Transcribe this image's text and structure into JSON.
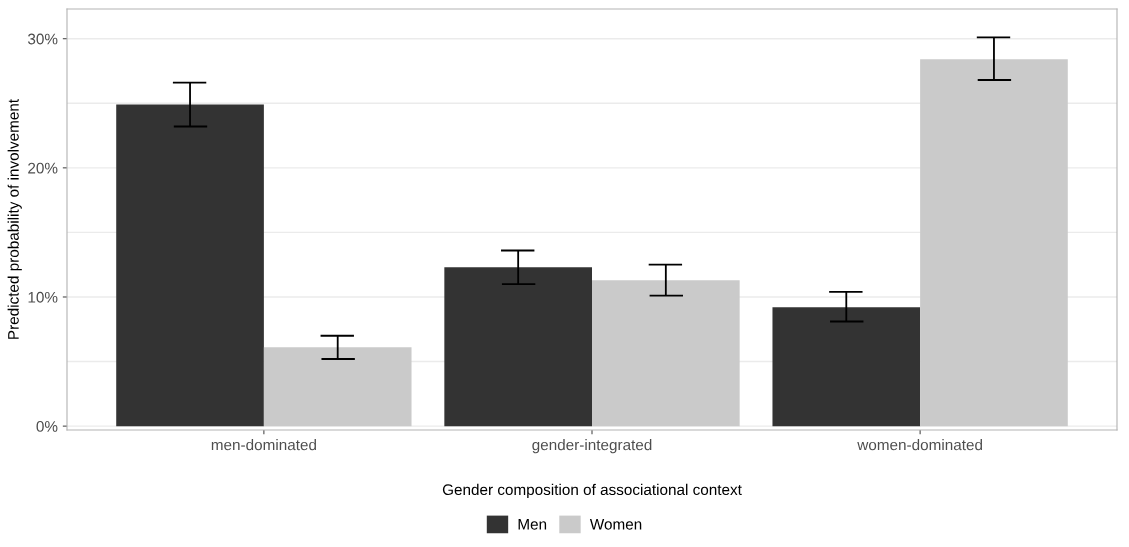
{
  "chart_data": {
    "type": "bar",
    "xlabel": "Gender composition of associational context",
    "ylabel": "Predicted probability of involvement",
    "categories": [
      "men-dominated",
      "gender-integrated",
      "women-dominated"
    ],
    "series": [
      {
        "name": "Men",
        "color": "#333333",
        "values": [
          24.9,
          12.3,
          9.2
        ],
        "errors": [
          [
            23.2,
            26.6
          ],
          [
            11.0,
            13.6
          ],
          [
            8.1,
            10.4
          ]
        ]
      },
      {
        "name": "Women",
        "color": "#cacaca",
        "values": [
          6.1,
          11.3,
          28.4
        ],
        "errors": [
          [
            5.2,
            7.0
          ],
          [
            10.1,
            12.5
          ],
          [
            26.8,
            30.1
          ]
        ]
      }
    ],
    "ylim": [
      -0.3,
      32.3
    ],
    "yticks": [
      {
        "value": 0,
        "label": "0%"
      },
      {
        "value": 5,
        "label": null
      },
      {
        "value": 10,
        "label": "10%"
      },
      {
        "value": 15,
        "label": null
      },
      {
        "value": 20,
        "label": "20%"
      },
      {
        "value": 25,
        "label": null
      },
      {
        "value": 30,
        "label": "30%"
      }
    ],
    "grid": "y",
    "legend": "bottom"
  }
}
